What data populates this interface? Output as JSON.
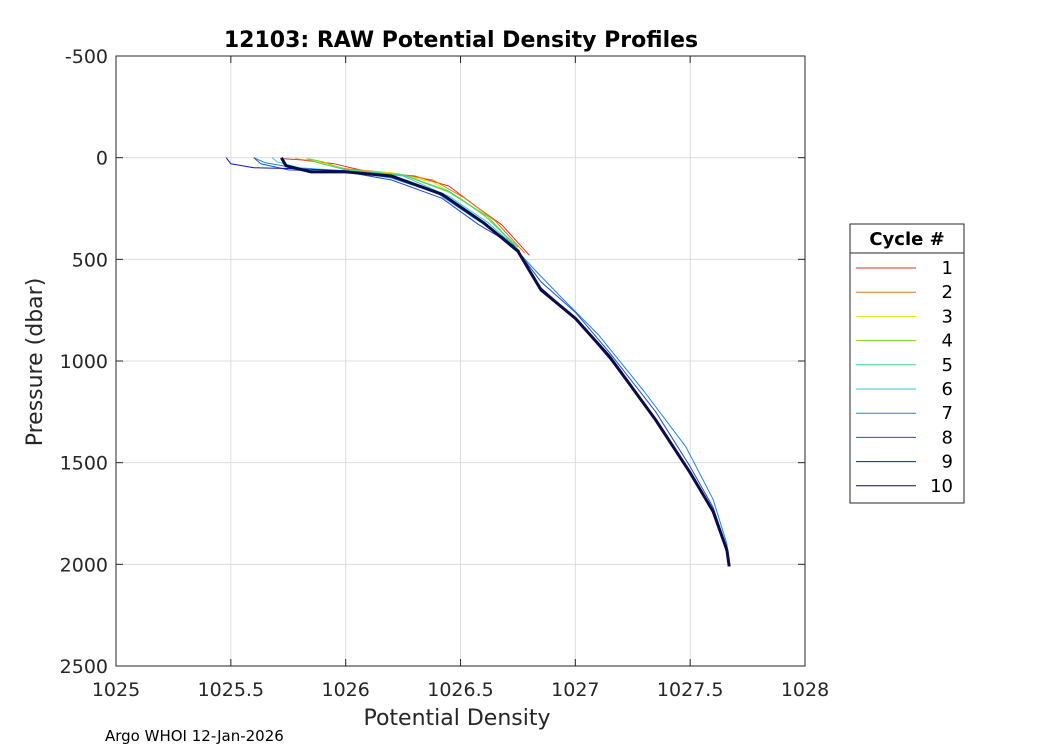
{
  "chart_data": {
    "type": "line",
    "title": "12103: RAW Potential Density Profiles",
    "xlabel": "Potential Density",
    "ylabel": "Pressure (dbar)",
    "xlim": [
      1025,
      1028
    ],
    "ylim": [
      -500,
      2500
    ],
    "y_reversed": true,
    "grid": true,
    "x_ticks": [
      "1025",
      "1025.5",
      "1026",
      "1026.5",
      "1027",
      "1027.5",
      "1028"
    ],
    "y_ticks": [
      "-500",
      "0",
      "500",
      "1000",
      "1500",
      "2000",
      "2500"
    ],
    "legend": {
      "title": "Cycle #",
      "placement": "outside-right"
    },
    "series": [
      {
        "name": "1",
        "color": "#e0301e",
        "x": [
          1025.73,
          1025.8,
          1025.95,
          1026.1,
          1026.3,
          1026.45,
          1026.58,
          1026.68,
          1026.8
        ],
        "y": [
          5,
          10,
          30,
          70,
          90,
          140,
          250,
          330,
          480
        ]
      },
      {
        "name": "2",
        "color": "#e07a10",
        "x": [
          1025.78,
          1025.85,
          1026.0,
          1026.2,
          1026.38,
          1026.52,
          1026.65,
          1026.78
        ],
        "y": [
          5,
          15,
          55,
          75,
          110,
          200,
          310,
          470
        ]
      },
      {
        "name": "3",
        "color": "#e6e600",
        "x": [
          1025.83,
          1025.88,
          1026.0,
          1026.2,
          1026.38,
          1026.5,
          1026.62,
          1026.76
        ],
        "y": [
          5,
          20,
          60,
          75,
          120,
          200,
          300,
          460
        ]
      },
      {
        "name": "4",
        "color": "#7ed321",
        "x": [
          1025.84,
          1025.9,
          1026.0,
          1026.25,
          1026.45,
          1026.62,
          1026.75
        ],
        "y": [
          5,
          20,
          60,
          85,
          170,
          290,
          450
        ]
      },
      {
        "name": "5",
        "color": "#3cd67e",
        "x": [
          1025.83,
          1025.88,
          1026.0,
          1026.25,
          1026.45,
          1026.6,
          1026.75
        ],
        "y": [
          5,
          25,
          60,
          85,
          165,
          280,
          440
        ]
      },
      {
        "name": "6",
        "color": "#2ed0d0",
        "x": [
          1025.68,
          1025.7,
          1025.8,
          1026.0,
          1026.25,
          1026.45,
          1026.62,
          1026.76
        ],
        "y": [
          0,
          20,
          50,
          65,
          90,
          190,
          320,
          460
        ]
      },
      {
        "name": "7",
        "color": "#1f86d9",
        "x": [
          1025.6,
          1025.65,
          1025.8,
          1026.0,
          1026.2,
          1026.4,
          1026.55,
          1026.7,
          1026.83,
          1026.95,
          1027.1,
          1027.3,
          1027.48,
          1027.6,
          1027.66,
          1027.67
        ],
        "y": [
          0,
          25,
          55,
          65,
          100,
          175,
          290,
          400,
          560,
          700,
          870,
          1150,
          1420,
          1680,
          1900,
          2010
        ]
      },
      {
        "name": "8",
        "color": "#1a4fd6",
        "x": [
          1025.6,
          1025.63,
          1025.75,
          1026.0,
          1026.2,
          1026.42,
          1026.58,
          1026.73,
          1026.85,
          1027.0,
          1027.15,
          1027.35,
          1027.5,
          1027.6,
          1027.66,
          1027.67
        ],
        "y": [
          0,
          30,
          60,
          70,
          110,
          200,
          330,
          430,
          610,
          760,
          960,
          1250,
          1520,
          1720,
          1920,
          2010
        ]
      },
      {
        "name": "9",
        "color": "#0a19c4",
        "x": [
          1025.48,
          1025.5,
          1025.6,
          1025.8,
          1026.0,
          1026.2,
          1026.42,
          1026.6,
          1026.75,
          1026.85,
          1027.0,
          1027.15,
          1027.35,
          1027.5,
          1027.6,
          1027.66,
          1027.67
        ],
        "y": [
          0,
          30,
          50,
          55,
          65,
          95,
          185,
          320,
          460,
          640,
          790,
          990,
          1290,
          1550,
          1740,
          1930,
          2010
        ]
      },
      {
        "name": "10",
        "color": "#0b0b4a",
        "x": [
          1025.72,
          1025.74,
          1025.85,
          1026.0,
          1026.2,
          1026.42,
          1026.6,
          1026.75,
          1026.85,
          1027.0,
          1027.15,
          1027.35,
          1027.5,
          1027.6,
          1027.66,
          1027.67
        ],
        "y": [
          0,
          40,
          70,
          70,
          90,
          180,
          320,
          460,
          650,
          790,
          980,
          1290,
          1550,
          1740,
          1930,
          2010
        ]
      }
    ]
  },
  "footer": {
    "text": "Argo WHOI 12-Jan-2026"
  }
}
